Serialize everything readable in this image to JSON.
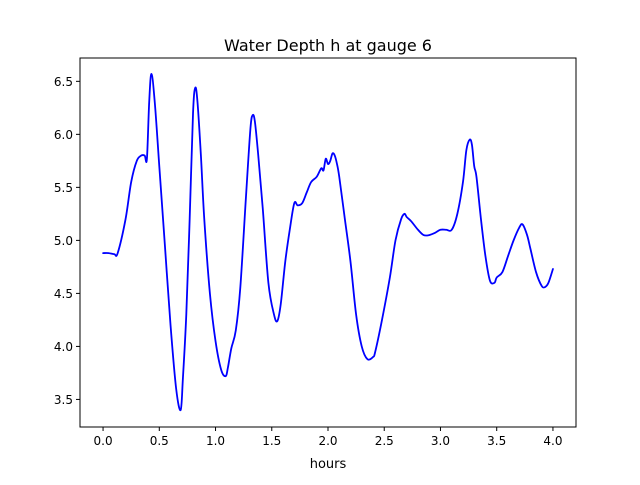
{
  "chart_data": {
    "type": "line",
    "title": "Water Depth h at gauge 6",
    "xlabel": "hours",
    "ylabel": "",
    "xlim": [
      -0.205,
      4.205
    ],
    "ylim": [
      3.24,
      6.72
    ],
    "xticks": [
      0.0,
      0.5,
      1.0,
      1.5,
      2.0,
      2.5,
      3.0,
      3.5,
      4.0
    ],
    "xtick_labels": [
      "0.0",
      "0.5",
      "1.0",
      "1.5",
      "2.0",
      "2.5",
      "3.0",
      "3.5",
      "4.0"
    ],
    "yticks": [
      3.5,
      4.0,
      4.5,
      5.0,
      5.5,
      6.0,
      6.5
    ],
    "ytick_labels": [
      "3.5",
      "4.0",
      "4.5",
      "5.0",
      "5.5",
      "6.0",
      "6.5"
    ],
    "grid": false,
    "series": [
      {
        "color": "#0000ff",
        "x": [
          0.0,
          0.05,
          0.1,
          0.13,
          0.2,
          0.25,
          0.3,
          0.34,
          0.37,
          0.39,
          0.41,
          0.43,
          0.46,
          0.5,
          0.55,
          0.6,
          0.65,
          0.69,
          0.71,
          0.74,
          0.77,
          0.8,
          0.82,
          0.84,
          0.87,
          0.9,
          0.95,
          1.0,
          1.05,
          1.09,
          1.11,
          1.14,
          1.18,
          1.22,
          1.27,
          1.31,
          1.33,
          1.35,
          1.38,
          1.42,
          1.47,
          1.52,
          1.55,
          1.58,
          1.62,
          1.66,
          1.7,
          1.73,
          1.77,
          1.81,
          1.85,
          1.9,
          1.94,
          1.96,
          1.98,
          2.0,
          2.02,
          2.04,
          2.06,
          2.08,
          2.1,
          2.15,
          2.2,
          2.25,
          2.3,
          2.35,
          2.4,
          2.42,
          2.48,
          2.55,
          2.6,
          2.65,
          2.68,
          2.7,
          2.74,
          2.8,
          2.85,
          2.9,
          2.95,
          3.0,
          3.05,
          3.1,
          3.15,
          3.2,
          3.23,
          3.26,
          3.28,
          3.3,
          3.32,
          3.36,
          3.4,
          3.44,
          3.48,
          3.5,
          3.55,
          3.6,
          3.65,
          3.7,
          3.73,
          3.77,
          3.8,
          3.85,
          3.9,
          3.93,
          3.96,
          4.0
        ],
        "y": [
          4.88,
          4.88,
          4.87,
          4.88,
          5.2,
          5.55,
          5.75,
          5.8,
          5.8,
          5.77,
          6.3,
          6.57,
          6.3,
          5.7,
          4.95,
          4.2,
          3.6,
          3.4,
          3.7,
          4.3,
          5.2,
          6.2,
          6.44,
          6.3,
          5.8,
          5.2,
          4.5,
          4.05,
          3.78,
          3.72,
          3.8,
          3.98,
          4.15,
          4.55,
          5.4,
          6.05,
          6.18,
          6.12,
          5.8,
          5.3,
          4.6,
          4.3,
          4.24,
          4.4,
          4.8,
          5.1,
          5.35,
          5.33,
          5.35,
          5.45,
          5.55,
          5.6,
          5.68,
          5.66,
          5.77,
          5.72,
          5.75,
          5.82,
          5.8,
          5.72,
          5.6,
          5.2,
          4.8,
          4.3,
          4.0,
          3.88,
          3.9,
          3.95,
          4.25,
          4.65,
          5.0,
          5.2,
          5.25,
          5.22,
          5.18,
          5.1,
          5.05,
          5.05,
          5.07,
          5.1,
          5.1,
          5.1,
          5.25,
          5.55,
          5.85,
          5.95,
          5.9,
          5.7,
          5.6,
          5.2,
          4.85,
          4.62,
          4.6,
          4.65,
          4.7,
          4.85,
          5.0,
          5.12,
          5.15,
          5.05,
          4.92,
          4.7,
          4.57,
          4.56,
          4.6,
          4.73
        ]
      }
    ]
  }
}
